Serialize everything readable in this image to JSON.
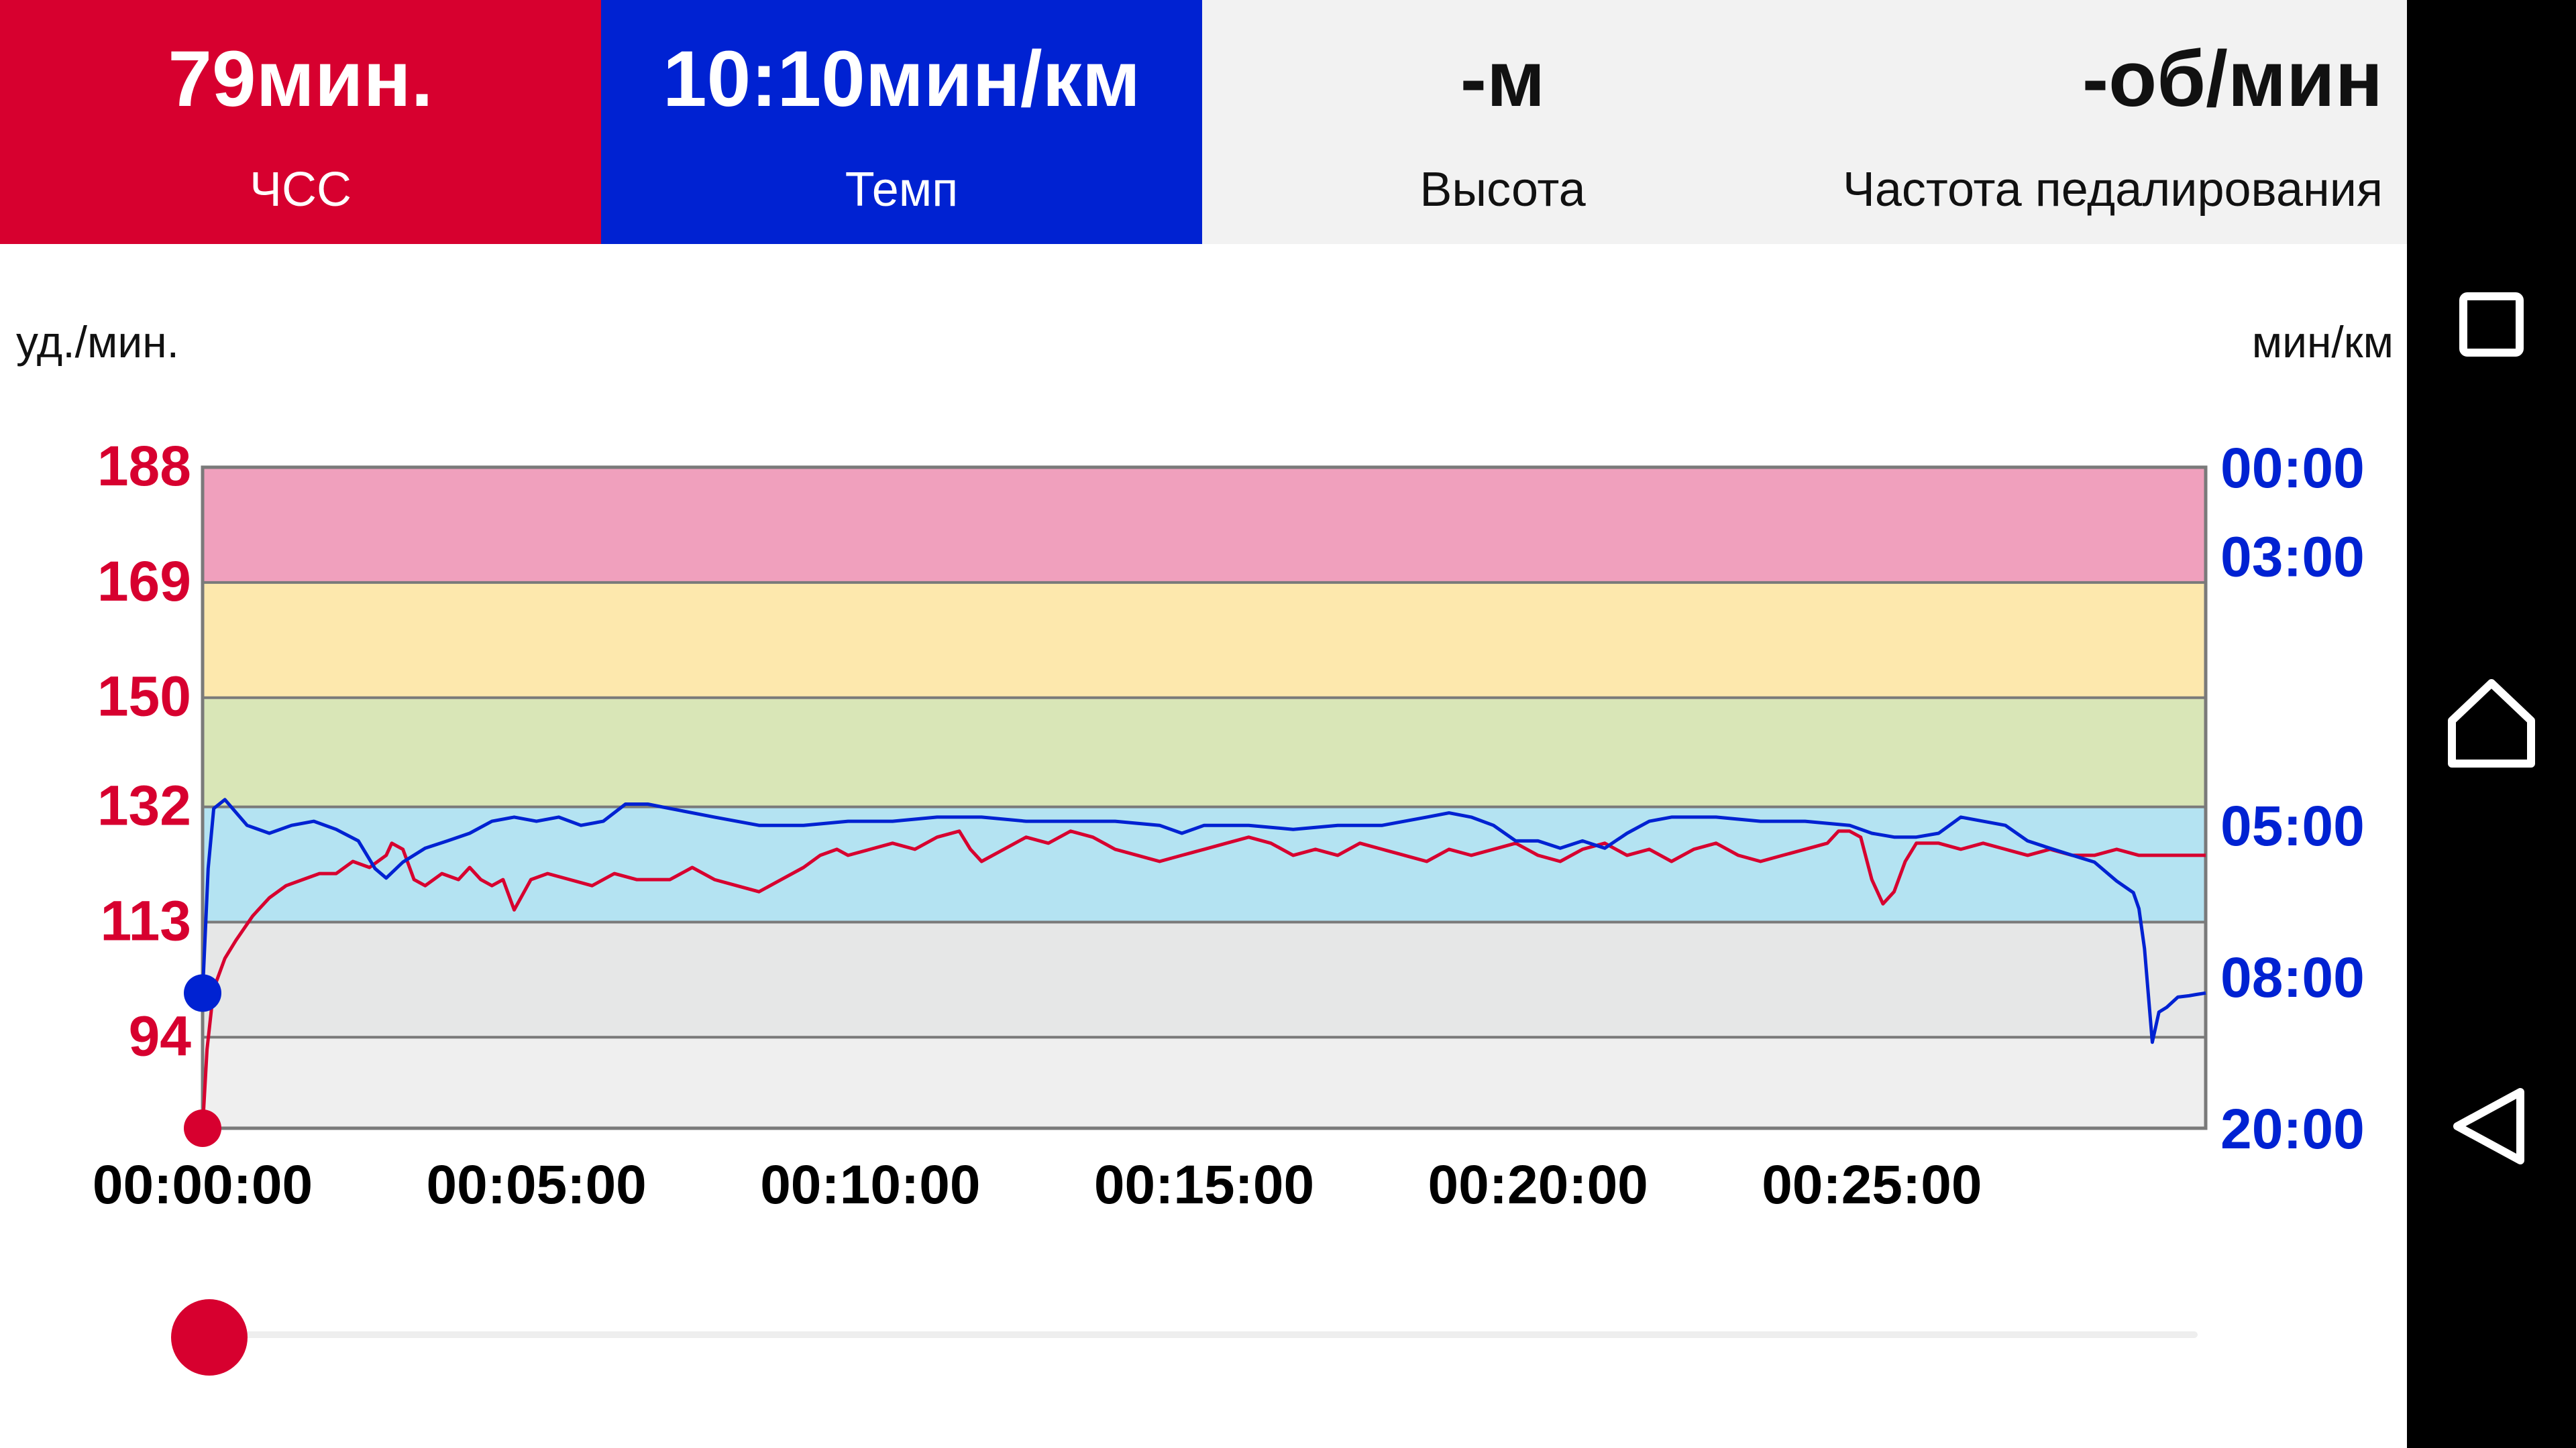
{
  "colors": {
    "hr": "#d7002f",
    "pace": "#0022d2",
    "zone5": "#f0a0bd",
    "zone4": "#fde8ad",
    "zone3": "#d9e6b7",
    "zone2": "#b4e3f2",
    "zone1": "#e6e7e7",
    "zone0": "#efefef"
  },
  "header": {
    "hr": {
      "value": "79мин.",
      "label": "ЧСС"
    },
    "pace": {
      "value": "10:10мин/км",
      "label": "Темп"
    },
    "altitude": {
      "value": "-м",
      "label": "Высота"
    },
    "cadence": {
      "value": "-об/мин",
      "label": "Частота педалирования"
    }
  },
  "chart": {
    "left_unit": "уд./мин.",
    "right_unit": "мин/км"
  },
  "chart_data": {
    "type": "line",
    "x_ticks": [
      "00:00:00",
      "00:05:00",
      "00:10:00",
      "00:15:00",
      "00:20:00",
      "00:25:00"
    ],
    "x_range_seconds": [
      0,
      1800
    ],
    "left_axis": {
      "ticks": [
        "188",
        "169",
        "150",
        "132",
        "113",
        "94"
      ],
      "range": [
        79,
        188
      ]
    },
    "right_axis": {
      "ticks": [
        "00:00",
        "03:00",
        "05:00",
        "08:00",
        "20:00"
      ]
    },
    "zones": [
      {
        "from": 169,
        "to": 188,
        "color_key": "zone5"
      },
      {
        "from": 150,
        "to": 169,
        "color_key": "zone4"
      },
      {
        "from": 132,
        "to": 150,
        "color_key": "zone3"
      },
      {
        "from": 113,
        "to": 132,
        "color_key": "zone2"
      },
      {
        "from": 94,
        "to": 113,
        "color_key": "zone1"
      },
      {
        "from": 79,
        "to": 94,
        "color_key": "zone0"
      }
    ],
    "series": [
      {
        "key": "hr",
        "color_key": "hr",
        "unit": "bpm",
        "points": [
          [
            0,
            79
          ],
          [
            4,
            92
          ],
          [
            10,
            102
          ],
          [
            20,
            107
          ],
          [
            30,
            110
          ],
          [
            45,
            114
          ],
          [
            60,
            117
          ],
          [
            75,
            119
          ],
          [
            90,
            120
          ],
          [
            105,
            121
          ],
          [
            120,
            121
          ],
          [
            135,
            123
          ],
          [
            150,
            122
          ],
          [
            165,
            124
          ],
          [
            170,
            126
          ],
          [
            180,
            125
          ],
          [
            190,
            120
          ],
          [
            200,
            119
          ],
          [
            215,
            121
          ],
          [
            230,
            120
          ],
          [
            240,
            122
          ],
          [
            250,
            120
          ],
          [
            260,
            119
          ],
          [
            270,
            120
          ],
          [
            280,
            115
          ],
          [
            295,
            120
          ],
          [
            310,
            121
          ],
          [
            330,
            120
          ],
          [
            350,
            119
          ],
          [
            370,
            121
          ],
          [
            390,
            120
          ],
          [
            420,
            120
          ],
          [
            440,
            122
          ],
          [
            460,
            120
          ],
          [
            480,
            119
          ],
          [
            500,
            118
          ],
          [
            520,
            120
          ],
          [
            540,
            122
          ],
          [
            555,
            124
          ],
          [
            570,
            125
          ],
          [
            580,
            124
          ],
          [
            600,
            125
          ],
          [
            620,
            126
          ],
          [
            640,
            125
          ],
          [
            660,
            127
          ],
          [
            680,
            128
          ],
          [
            690,
            125
          ],
          [
            700,
            123
          ],
          [
            720,
            125
          ],
          [
            740,
            127
          ],
          [
            760,
            126
          ],
          [
            780,
            128
          ],
          [
            800,
            127
          ],
          [
            820,
            125
          ],
          [
            840,
            124
          ],
          [
            860,
            123
          ],
          [
            880,
            124
          ],
          [
            900,
            125
          ],
          [
            920,
            126
          ],
          [
            940,
            127
          ],
          [
            960,
            126
          ],
          [
            980,
            124
          ],
          [
            1000,
            125
          ],
          [
            1020,
            124
          ],
          [
            1040,
            126
          ],
          [
            1060,
            125
          ],
          [
            1080,
            124
          ],
          [
            1100,
            123
          ],
          [
            1120,
            125
          ],
          [
            1140,
            124
          ],
          [
            1160,
            125
          ],
          [
            1180,
            126
          ],
          [
            1200,
            124
          ],
          [
            1220,
            123
          ],
          [
            1240,
            125
          ],
          [
            1260,
            126
          ],
          [
            1280,
            124
          ],
          [
            1300,
            125
          ],
          [
            1320,
            123
          ],
          [
            1340,
            125
          ],
          [
            1360,
            126
          ],
          [
            1380,
            124
          ],
          [
            1400,
            123
          ],
          [
            1420,
            124
          ],
          [
            1440,
            125
          ],
          [
            1460,
            126
          ],
          [
            1470,
            128
          ],
          [
            1480,
            128
          ],
          [
            1490,
            127
          ],
          [
            1500,
            120
          ],
          [
            1510,
            116
          ],
          [
            1520,
            118
          ],
          [
            1530,
            123
          ],
          [
            1540,
            126
          ],
          [
            1560,
            126
          ],
          [
            1580,
            125
          ],
          [
            1600,
            126
          ],
          [
            1620,
            125
          ],
          [
            1640,
            124
          ],
          [
            1660,
            125
          ],
          [
            1680,
            124
          ],
          [
            1700,
            124
          ],
          [
            1720,
            125
          ],
          [
            1740,
            124
          ],
          [
            1760,
            124
          ],
          [
            1780,
            124
          ],
          [
            1800,
            124
          ]
        ]
      },
      {
        "key": "pace",
        "color_key": "pace",
        "unit": "min/km",
        "points": [
          [
            0,
            8.55
          ],
          [
            5,
            5.6
          ],
          [
            10,
            4.8
          ],
          [
            20,
            4.7
          ],
          [
            40,
            5.0
          ],
          [
            60,
            5.1
          ],
          [
            80,
            5.0
          ],
          [
            100,
            4.95
          ],
          [
            120,
            5.05
          ],
          [
            140,
            5.2
          ],
          [
            155,
            5.6
          ],
          [
            165,
            5.75
          ],
          [
            180,
            5.5
          ],
          [
            200,
            5.3
          ],
          [
            220,
            5.2
          ],
          [
            240,
            5.1
          ],
          [
            260,
            4.95
          ],
          [
            280,
            4.9
          ],
          [
            300,
            4.95
          ],
          [
            320,
            4.9
          ],
          [
            340,
            5.0
          ],
          [
            360,
            4.95
          ],
          [
            380,
            4.75
          ],
          [
            400,
            4.75
          ],
          [
            420,
            4.8
          ],
          [
            460,
            4.9
          ],
          [
            500,
            5.0
          ],
          [
            540,
            5.0
          ],
          [
            580,
            4.95
          ],
          [
            620,
            4.95
          ],
          [
            660,
            4.9
          ],
          [
            700,
            4.9
          ],
          [
            740,
            4.95
          ],
          [
            780,
            4.95
          ],
          [
            820,
            4.95
          ],
          [
            860,
            5.0
          ],
          [
            880,
            5.1
          ],
          [
            900,
            5.0
          ],
          [
            940,
            5.0
          ],
          [
            980,
            5.05
          ],
          [
            1020,
            5.0
          ],
          [
            1060,
            5.0
          ],
          [
            1100,
            4.9
          ],
          [
            1120,
            4.85
          ],
          [
            1140,
            4.9
          ],
          [
            1160,
            5.0
          ],
          [
            1180,
            5.2
          ],
          [
            1200,
            5.2
          ],
          [
            1220,
            5.3
          ],
          [
            1240,
            5.2
          ],
          [
            1260,
            5.3
          ],
          [
            1280,
            5.1
          ],
          [
            1300,
            4.95
          ],
          [
            1320,
            4.9
          ],
          [
            1360,
            4.9
          ],
          [
            1400,
            4.95
          ],
          [
            1440,
            4.95
          ],
          [
            1480,
            5.0
          ],
          [
            1500,
            5.1
          ],
          [
            1520,
            5.15
          ],
          [
            1540,
            5.15
          ],
          [
            1560,
            5.1
          ],
          [
            1580,
            4.9
          ],
          [
            1600,
            4.95
          ],
          [
            1620,
            5.0
          ],
          [
            1640,
            5.2
          ],
          [
            1660,
            5.3
          ],
          [
            1680,
            5.4
          ],
          [
            1700,
            5.5
          ],
          [
            1720,
            5.8
          ],
          [
            1735,
            6.0
          ],
          [
            1740,
            6.3
          ],
          [
            1745,
            7.2
          ],
          [
            1752,
            10.8
          ],
          [
            1758,
            9.3
          ],
          [
            1765,
            9.1
          ],
          [
            1775,
            8.7
          ],
          [
            1785,
            8.65
          ],
          [
            1792,
            8.6
          ],
          [
            1800,
            8.55
          ]
        ]
      }
    ]
  },
  "slider": {
    "position": 0
  },
  "navbar": {
    "recent": "recent-apps-icon",
    "home": "home-icon",
    "back": "back-icon"
  }
}
